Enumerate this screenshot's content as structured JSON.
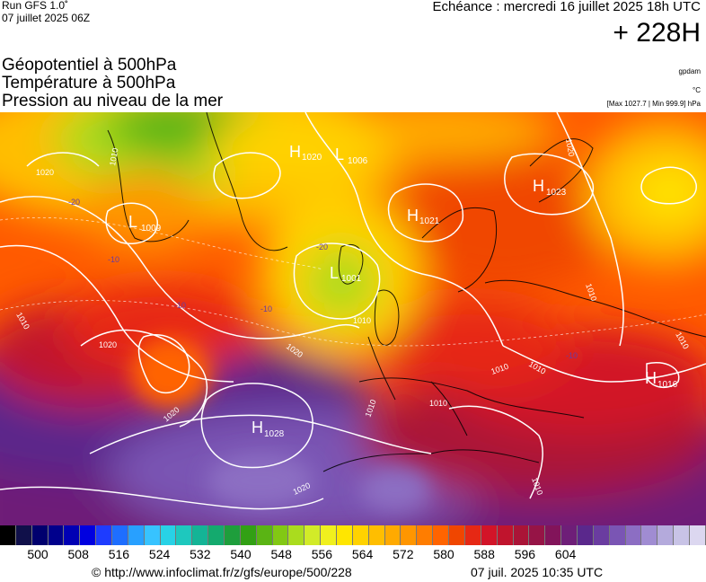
{
  "header": {
    "run": "Run GFS 1.0˚",
    "run_date": "07 juillet 2025 06Z",
    "echeance": "Echéance : mercredi 16 juillet 2025 18h UTC",
    "lead": "+ 228H"
  },
  "parameters": [
    {
      "label": "Géopotentiel à 500hPa",
      "unit": "gpdam"
    },
    {
      "label": "Température à 500hPa",
      "unit": "°C"
    },
    {
      "label": "Pression au niveau de la mer",
      "unit": "[Max 1027.7 | Min 999.9] hPa"
    }
  ],
  "colorbar": {
    "ticks": [
      "500",
      "508",
      "516",
      "524",
      "532",
      "540",
      "548",
      "556",
      "564",
      "572",
      "580",
      "588",
      "596",
      "604"
    ],
    "colors": [
      "#000000",
      "#10104a",
      "#00006e",
      "#00008c",
      "#0000b4",
      "#0000e0",
      "#1e3cff",
      "#1e6eff",
      "#28a0ff",
      "#37c3ff",
      "#28d2e6",
      "#1ec8be",
      "#14b496",
      "#14aa6e",
      "#1e9e3c",
      "#32a014",
      "#5ab414",
      "#82c814",
      "#aadc1e",
      "#d2eb28",
      "#f0f01e",
      "#ffe600",
      "#ffd200",
      "#ffbe00",
      "#ffaa00",
      "#ff9600",
      "#ff7d00",
      "#ff6400",
      "#f04600",
      "#e62814",
      "#d21428",
      "#c0142d",
      "#aa1437",
      "#961446",
      "#82145a",
      "#6e1e78",
      "#5a288c",
      "#6a3ca0",
      "#7a55b4",
      "#8c6ec3",
      "#a08cd2",
      "#b4aadc",
      "#c8c3e6",
      "#dcd7f0"
    ]
  },
  "map": {
    "pressure_centers": [
      {
        "type": "H",
        "value": "1020"
      },
      {
        "type": "L",
        "value": "1006"
      },
      {
        "type": "H",
        "value": "1023"
      },
      {
        "type": "H",
        "value": "1021"
      },
      {
        "type": "L",
        "value": "1001"
      },
      {
        "type": "L",
        "value": "1009"
      },
      {
        "type": "H",
        "value": "1028"
      },
      {
        "type": "H",
        "value": "1016"
      }
    ],
    "isobar_labels": [
      "1020",
      "1010",
      "1010",
      "1020",
      "1020",
      "1020",
      "1010",
      "1010",
      "1010",
      "1010",
      "1020",
      "1010",
      "1010",
      "1020",
      "1010",
      "1010"
    ],
    "temp_labels": [
      "-20",
      "-10",
      "-10",
      "-10",
      "-10",
      "-20"
    ]
  },
  "footer": {
    "url": "© http://www.infoclimat.fr/z/gfs/europe/500/228",
    "date": "07 juil. 2025 10:35 UTC"
  }
}
